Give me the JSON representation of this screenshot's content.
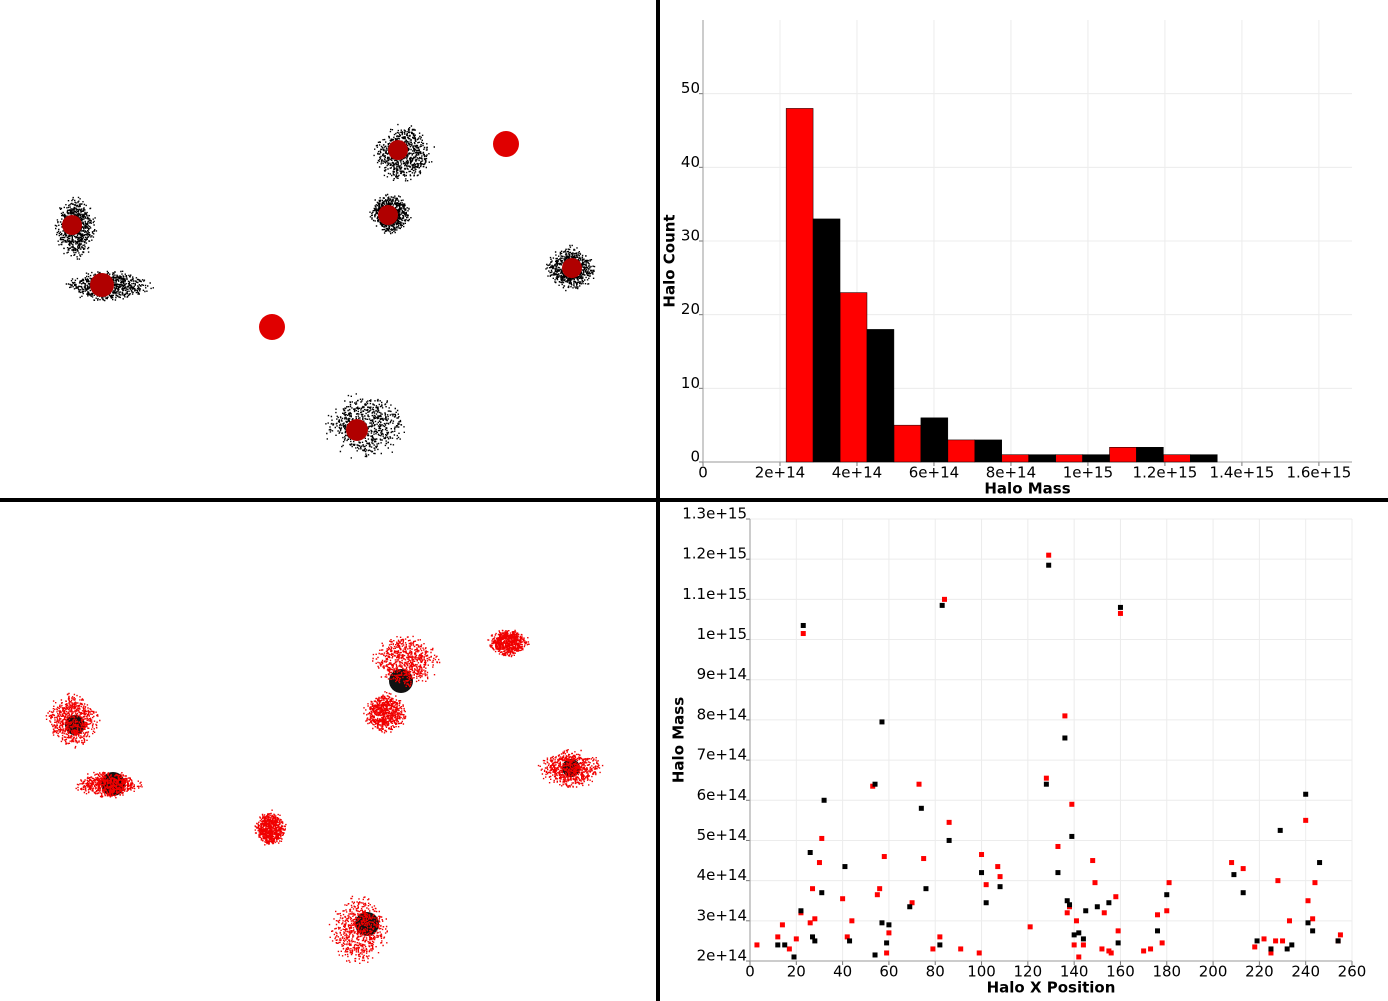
{
  "chart_data": [
    {
      "type": "histogram",
      "x_label": "Halo Mass",
      "y_label": "Halo Count",
      "bins": [
        216000000000000.0,
        356000000000000.0,
        496000000000000.0,
        636000000000000.0,
        776000000000000.0,
        916000000000000.0,
        1056000000000000.0,
        1196000000000000.0,
        1336000000000000.0
      ],
      "series": [
        {
          "color": "#ff0000",
          "values": [
            48,
            23,
            5,
            3,
            1,
            1,
            2,
            1
          ]
        },
        {
          "color": "#000000",
          "values": [
            33,
            18,
            6,
            3,
            1,
            1,
            2,
            1
          ]
        }
      ],
      "xlim": [
        0,
        1686000000000000.0
      ],
      "ylim": [
        0,
        60
      ],
      "xticks": [
        0,
        {
          "value": 200000000000000.0,
          "label": "2e+14"
        },
        {
          "value": 400000000000000.0,
          "label": "4e+14"
        },
        {
          "value": 600000000000000.0,
          "label": "6e+14"
        },
        {
          "value": 800000000000000.0,
          "label": "8e+14"
        },
        {
          "value": 1000000000000000.0,
          "label": "1e+15"
        },
        {
          "value": 1200000000000000.0,
          "label": "1.2e+15"
        },
        {
          "value": 1400000000000000.0,
          "label": "1.4e+15"
        },
        {
          "value": 1600000000000000.0,
          "label": "1.6e+15"
        }
      ],
      "yticks": [
        0,
        10,
        20,
        30,
        40,
        50
      ],
      "grid": true
    },
    {
      "type": "scatter",
      "x_label": "Halo X Position",
      "y_label": "Halo Mass",
      "series": [
        {
          "color": "#ff0000",
          "x": [
            3,
            12,
            14,
            17,
            20,
            22,
            23,
            26,
            27,
            28,
            30,
            31,
            40,
            42,
            44,
            53,
            55,
            56,
            58,
            59,
            60,
            70,
            73,
            75,
            79,
            82,
            84,
            86,
            91,
            99,
            100,
            102,
            107,
            108,
            121,
            128,
            129,
            133,
            136,
            137,
            138,
            139,
            140,
            141,
            142,
            144,
            148,
            149,
            152,
            153,
            155,
            156,
            158,
            159,
            160,
            170,
            173,
            176,
            178,
            180,
            181,
            208,
            213,
            218,
            222,
            225,
            227,
            228,
            230,
            233,
            240,
            241,
            243,
            244,
            254,
            255
          ],
          "y": [
            240000000000000.0,
            260000000000000.0,
            290000000000000.0,
            230000000000000.0,
            255000000000000.0,
            320000000000000.0,
            1015000000000000.0,
            295000000000000.0,
            380000000000000.0,
            305000000000000.0,
            445000000000000.0,
            505000000000000.0,
            355000000000000.0,
            260000000000000.0,
            300000000000000.0,
            635000000000000.0,
            365000000000000.0,
            380000000000000.0,
            460000000000000.0,
            220000000000000.0,
            270000000000000.0,
            345000000000000.0,
            640000000000000.0,
            455000000000000.0,
            230000000000000.0,
            260000000000000.0,
            1100000000000000.0,
            545000000000000.0,
            230000000000000.0,
            220000000000000.0,
            465000000000000.0,
            390000000000000.0,
            435000000000000.0,
            410000000000000.0,
            285000000000000.0,
            655000000000000.0,
            1210000000000000.0,
            485000000000000.0,
            810000000000000.0,
            320000000000000.0,
            335000000000000.0,
            590000000000000.0,
            240000000000000.0,
            300000000000000.0,
            210000000000000.0,
            240000000000000.0,
            450000000000000.0,
            395000000000000.0,
            230000000000000.0,
            320000000000000.0,
            225000000000000.0,
            220000000000000.0,
            360000000000000.0,
            275000000000000.0,
            1065000000000000.0,
            225000000000000.0,
            230000000000000.0,
            315000000000000.0,
            245000000000000.0,
            325000000000000.0,
            395000000000000.0,
            445000000000000.0,
            430000000000000.0,
            235000000000000.0,
            255000000000000.0,
            220000000000000.0,
            250000000000000.0,
            400000000000000.0,
            250000000000000.0,
            300000000000000.0,
            550000000000000.0,
            350000000000000.0,
            305000000000000.0,
            395000000000000.0,
            250000000000000.0,
            265000000000000.0
          ]
        },
        {
          "color": "#000000",
          "x": [
            12,
            15,
            19,
            22,
            23,
            26,
            27,
            28,
            31,
            32,
            41,
            43,
            54,
            54,
            57,
            57,
            59,
            60,
            69,
            74,
            76,
            82,
            83,
            86,
            100,
            102,
            108,
            128,
            129,
            133,
            136,
            137,
            138,
            139,
            140,
            142,
            144,
            145,
            150,
            155,
            159,
            160,
            176,
            180,
            209,
            213,
            219,
            225,
            229,
            232,
            234,
            240,
            241,
            243,
            246,
            254
          ],
          "y": [
            240000000000000.0,
            240000000000000.0,
            210000000000000.0,
            325000000000000.0,
            1035000000000000.0,
            470000000000000.0,
            260000000000000.0,
            250000000000000.0,
            370000000000000.0,
            600000000000000.0,
            435000000000000.0,
            250000000000000.0,
            640000000000000.0,
            215000000000000.0,
            295000000000000.0,
            795000000000000.0,
            245000000000000.0,
            290000000000000.0,
            335000000000000.0,
            580000000000000.0,
            380000000000000.0,
            240000000000000.0,
            1085000000000000.0,
            500000000000000.0,
            420000000000000.0,
            345000000000000.0,
            385000000000000.0,
            640000000000000.0,
            1185000000000000.0,
            420000000000000.0,
            755000000000000.0,
            350000000000000.0,
            340000000000000.0,
            510000000000000.0,
            265000000000000.0,
            270000000000000.0,
            255000000000000.0,
            325000000000000.0,
            335000000000000.0,
            345000000000000.0,
            245000000000000.0,
            1080000000000000.0,
            275000000000000.0,
            365000000000000.0,
            415000000000000.0,
            370000000000000.0,
            250000000000000.0,
            230000000000000.0,
            525000000000000.0,
            230000000000000.0,
            240000000000000.0,
            615000000000000.0,
            295000000000000.0,
            275000000000000.0,
            445000000000000.0,
            250000000000000.0
          ]
        }
      ],
      "xlim": [
        0,
        260
      ],
      "ylim": [
        200000000000000.0,
        1300000000000000.0
      ],
      "xticks": [
        0,
        20,
        40,
        60,
        80,
        100,
        120,
        140,
        160,
        180,
        200,
        220,
        240,
        260
      ],
      "yticks": [
        {
          "value": 200000000000000.0,
          "label": "2e+14"
        },
        {
          "value": 300000000000000.0,
          "label": "3e+14"
        },
        {
          "value": 400000000000000.0,
          "label": "4e+14"
        },
        {
          "value": 500000000000000.0,
          "label": "5e+14"
        },
        {
          "value": 600000000000000.0,
          "label": "6e+14"
        },
        {
          "value": 700000000000000.0,
          "label": "7e+14"
        },
        {
          "value": 800000000000000.0,
          "label": "8e+14"
        },
        {
          "value": 900000000000000.0,
          "label": "9e+14"
        },
        {
          "value": 1000000000000000.0,
          "label": "1e+15"
        },
        {
          "value": 1100000000000000.0,
          "label": "1.1e+15"
        },
        {
          "value": 1200000000000000.0,
          "label": "1.2e+15"
        },
        {
          "value": 1300000000000000.0,
          "label": "1.3e+15"
        }
      ],
      "grid": true
    }
  ]
}
